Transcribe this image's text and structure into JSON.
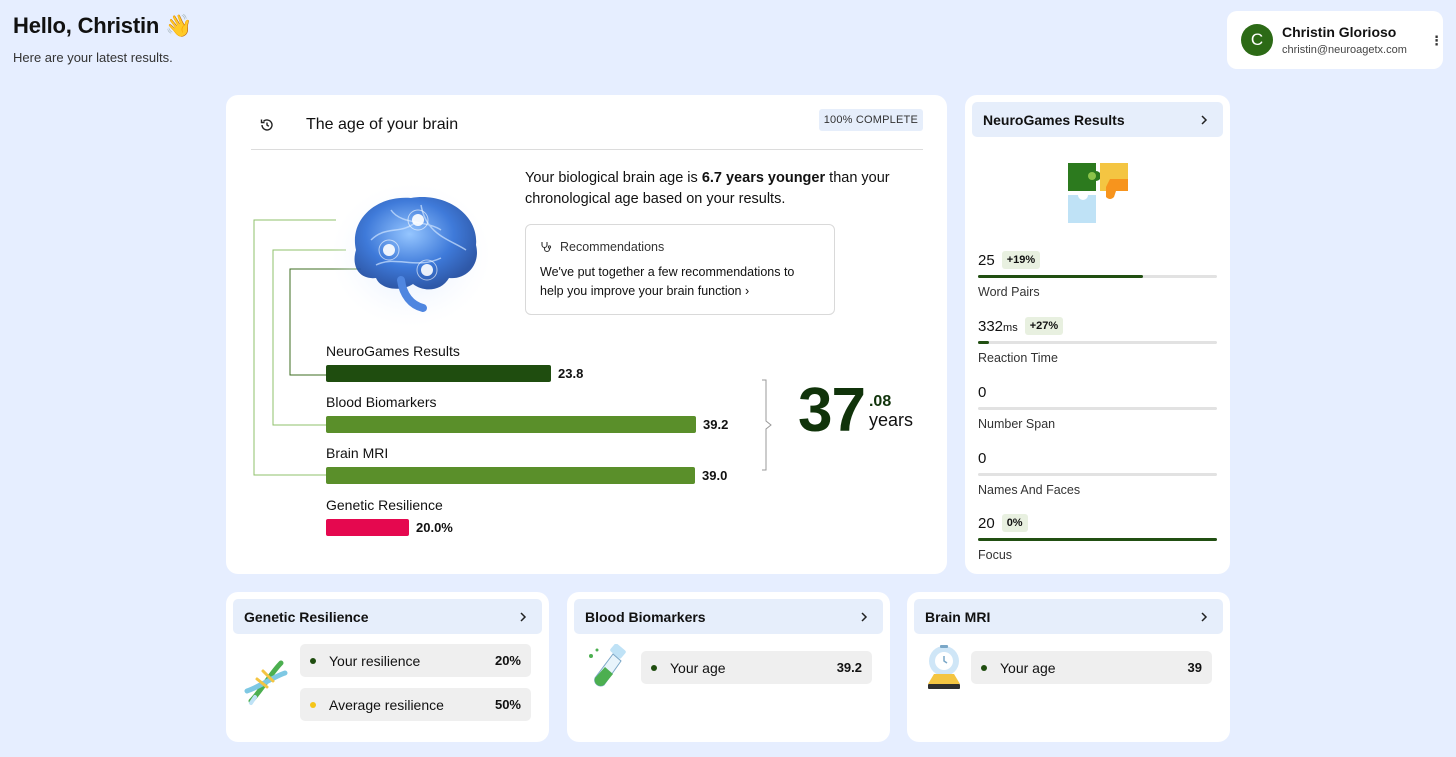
{
  "greeting": {
    "title": "Hello, Christin 👋",
    "subtitle": "Here are your latest results."
  },
  "user": {
    "initial": "C",
    "name": "Christin Glorioso",
    "email": "christin@neuroagetx.com"
  },
  "brain_age": {
    "title": "The age of your brain",
    "badge": "100% COMPLETE",
    "summary_prefix": "Your biological brain age is ",
    "summary_bold": "6.7 years younger",
    "summary_suffix": " than your chronological age based on your results.",
    "recommendations": {
      "title": "Recommendations",
      "body": "We've put together a few recommendations to help you improve your brain function ›"
    },
    "bars": [
      {
        "label": "NeuroGames Results",
        "value": 23.8,
        "display": "23.8",
        "color": "#1f4d0f"
      },
      {
        "label": "Blood Biomarkers",
        "value": 39.2,
        "display": "39.2",
        "color": "#5a8f2a"
      },
      {
        "label": "Brain MRI",
        "value": 39.0,
        "display": "39.0",
        "color": "#5a8f2a"
      },
      {
        "label": "Genetic Resilience",
        "value": 20.0,
        "display": "20.0%",
        "color": "#e5084f"
      }
    ],
    "age_whole": "37",
    "age_decimal": ".08",
    "age_unit": "years"
  },
  "neurogames": {
    "title": "NeuroGames Results",
    "metrics": [
      {
        "value": "25",
        "unit": "",
        "change": "+19%",
        "name": "Word Pairs",
        "fill": 0.69
      },
      {
        "value": "332",
        "unit": "ms",
        "change": "+27%",
        "name": "Reaction Time",
        "fill": 0.045
      },
      {
        "value": "0",
        "unit": "",
        "change": "",
        "name": "Number Span",
        "fill": 0
      },
      {
        "value": "0",
        "unit": "",
        "change": "",
        "name": "Names And Faces",
        "fill": 0
      },
      {
        "value": "20",
        "unit": "",
        "change": "0%",
        "name": "Focus",
        "fill": 1.0
      }
    ]
  },
  "genetic": {
    "title": "Genetic Resilience",
    "rows": [
      {
        "label": "Your resilience",
        "value": "20%",
        "dot": "#1f4d0f"
      },
      {
        "label": "Average resilience",
        "value": "50%",
        "dot": "#f5c518"
      }
    ]
  },
  "blood": {
    "title": "Blood Biomarkers",
    "row": {
      "label": "Your age",
      "value": "39.2",
      "dot": "#1f4d0f"
    }
  },
  "mri": {
    "title": "Brain MRI",
    "row": {
      "label": "Your age",
      "value": "39",
      "dot": "#1f4d0f"
    }
  },
  "icons": [
    "waving-hand",
    "history-icon",
    "stethoscope-icon",
    "chevron-right-icon",
    "kebab-menu-icon",
    "brain-image",
    "puzzle-icon",
    "dna-icon",
    "test-tube-icon",
    "mri-scanner-icon"
  ]
}
